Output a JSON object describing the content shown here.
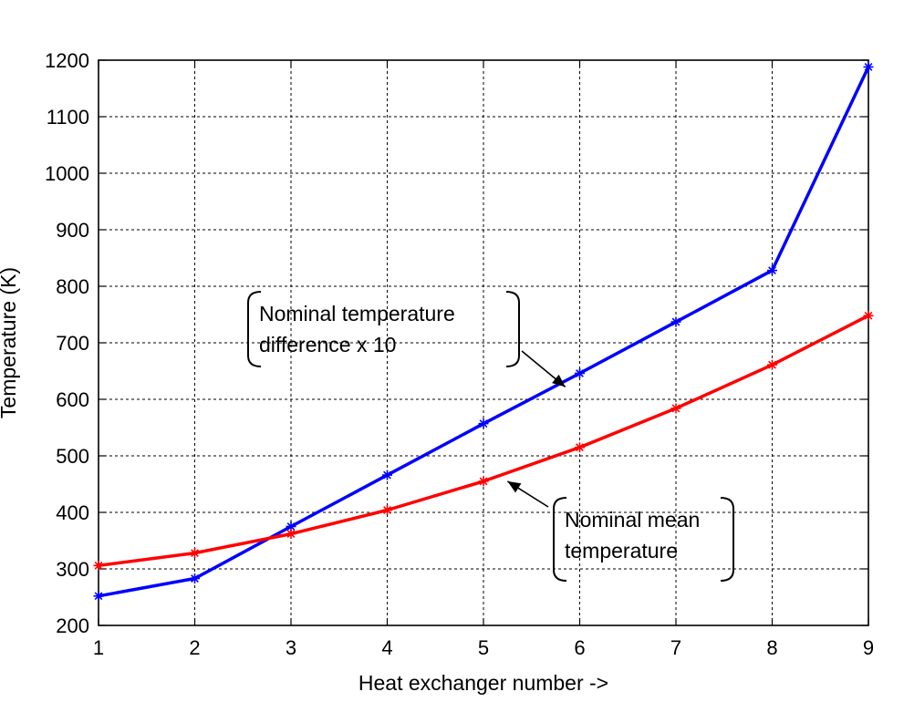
{
  "chart_data": {
    "type": "line",
    "title": "",
    "xlabel": "Heat exchanger number ->",
    "ylabel": "Temperature (K)",
    "xlim": [
      1,
      9
    ],
    "ylim": [
      200,
      1200
    ],
    "x_ticks": [
      1,
      2,
      3,
      4,
      5,
      6,
      7,
      8,
      9
    ],
    "y_ticks": [
      200,
      300,
      400,
      500,
      600,
      700,
      800,
      900,
      1000,
      1100,
      1200
    ],
    "grid": true,
    "series": [
      {
        "key": "difference",
        "color": "#0000ff",
        "marker": "asterisk",
        "x": [
          1,
          2,
          3,
          4,
          5,
          6,
          7,
          8,
          9
        ],
        "y": [
          252,
          283,
          375,
          466,
          557,
          646,
          737,
          828,
          1188
        ]
      },
      {
        "key": "mean",
        "color": "#ff0000",
        "marker": "asterisk",
        "x": [
          1,
          2,
          3,
          4,
          5,
          6,
          7,
          8,
          9
        ],
        "y": [
          306,
          328,
          362,
          404,
          455,
          515,
          584,
          661,
          748
        ]
      }
    ],
    "annotations": [
      {
        "key": "difference",
        "lines": [
          "Nominal temperature",
          "difference x 10"
        ],
        "arrow_to": [
          5.85,
          622
        ]
      },
      {
        "key": "mean",
        "lines": [
          "Nominal mean",
          "temperature"
        ],
        "arrow_to": [
          5.25,
          455
        ]
      }
    ]
  }
}
